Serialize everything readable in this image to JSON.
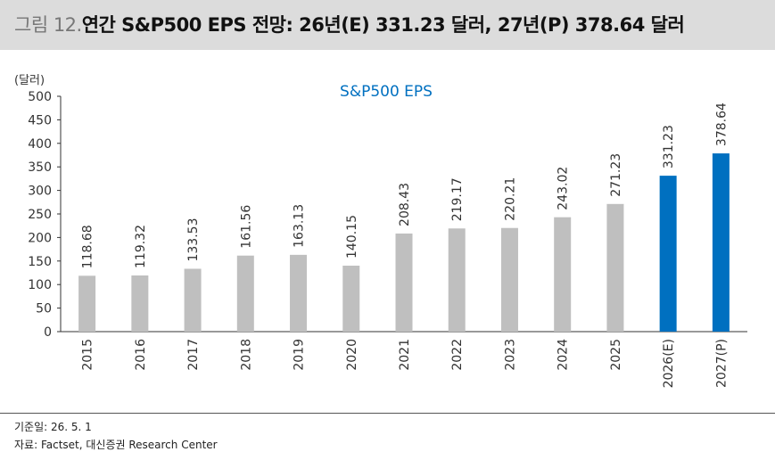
{
  "header": {
    "figure_label": "그림 12.",
    "title": "연간 S&P500 EPS 전망: 26년(E) 331.23 달러, 27년(P) 378.64 달러"
  },
  "colors": {
    "header_bg": "#dcdcdc",
    "bar_actual": "#bfbfbf",
    "bar_forecast": "#0070c0",
    "title_accent": "#0070c0"
  },
  "chart_data": {
    "type": "bar",
    "title": "S&P500 EPS",
    "ylabel": "(달러)",
    "ylim": [
      0,
      500
    ],
    "yticks": [
      0,
      50,
      100,
      150,
      200,
      250,
      300,
      350,
      400,
      450,
      500
    ],
    "categories": [
      "2015",
      "2016",
      "2017",
      "2018",
      "2019",
      "2020",
      "2021",
      "2022",
      "2023",
      "2024",
      "2025",
      "2026(E)",
      "2027(P)"
    ],
    "values": [
      118.68,
      119.32,
      133.53,
      161.56,
      163.13,
      140.15,
      208.43,
      219.17,
      220.21,
      243.02,
      271.23,
      331.23,
      378.64
    ],
    "value_labels": [
      "118.68",
      "119.32",
      "133.53",
      "161.56",
      "163.13",
      "140.15",
      "208.43",
      "219.17",
      "220.21",
      "243.02",
      "271.23",
      "331.23",
      "378.64"
    ],
    "forecast": [
      false,
      false,
      false,
      false,
      false,
      false,
      false,
      false,
      false,
      false,
      false,
      true,
      true
    ],
    "grid": false,
    "legend": "none"
  },
  "footer": {
    "base_date": "기준일: 26. 5. 1",
    "source": "자료: Factset, 대신증권 Research Center"
  }
}
